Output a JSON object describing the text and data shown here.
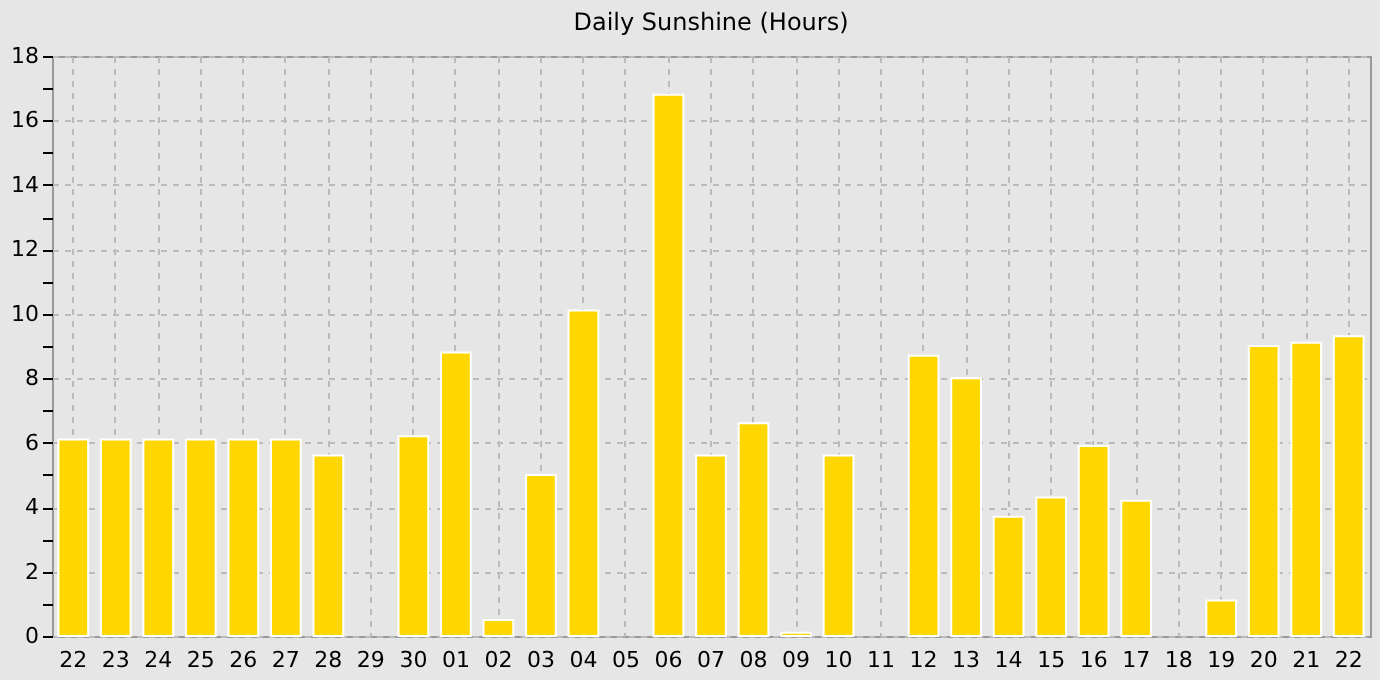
{
  "chart_data": {
    "type": "bar",
    "title": "Daily Sunshine (Hours)",
    "categories": [
      "22",
      "23",
      "24",
      "25",
      "26",
      "27",
      "28",
      "29",
      "30",
      "01",
      "02",
      "03",
      "04",
      "05",
      "06",
      "07",
      "08",
      "09",
      "10",
      "11",
      "12",
      "13",
      "14",
      "15",
      "16",
      "17",
      "18",
      "19",
      "20",
      "21",
      "22"
    ],
    "values": [
      6.1,
      6.1,
      6.1,
      6.1,
      6.1,
      6.1,
      5.6,
      0,
      6.2,
      8.8,
      0.5,
      5.0,
      10.1,
      0,
      16.8,
      5.6,
      6.6,
      0.1,
      5.6,
      0,
      8.7,
      8.0,
      3.7,
      4.3,
      5.9,
      4.2,
      0,
      1.1,
      9.0,
      9.1,
      9.3
    ],
    "color": "#ffd700",
    "ylim": [
      0,
      18
    ],
    "yticks": [
      0,
      {
        "value": 1,
        "label": null
      },
      2,
      {
        "value": 3,
        "label": null
      },
      4,
      {
        "value": 5,
        "label": null
      },
      6,
      {
        "value": 7,
        "label": null
      },
      8,
      {
        "value": 9,
        "label": null
      },
      10,
      {
        "value": 11,
        "label": null
      },
      12,
      {
        "value": 13,
        "label": null
      },
      14,
      {
        "value": 15,
        "label": null
      },
      16,
      {
        "value": 17,
        "label": null
      },
      18
    ],
    "grid": true
  }
}
